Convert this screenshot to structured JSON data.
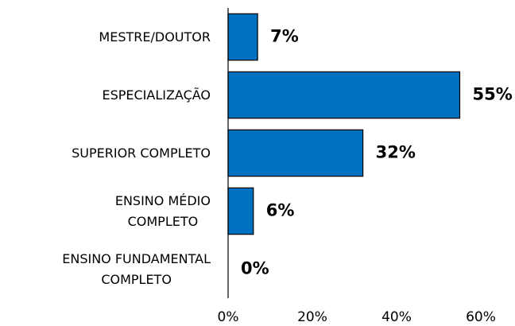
{
  "chart_data": {
    "type": "bar",
    "orientation": "horizontal",
    "categories": [
      "MESTRE/DOUTOR",
      "ESPECIALIZAÇÃO",
      "SUPERIOR COMPLETO",
      "ENSINO MÉDIO\nCOMPLETO",
      "ENSINO FUNDAMENTAL\nCOMPLETO"
    ],
    "values": [
      7,
      55,
      32,
      6,
      0
    ],
    "value_labels": [
      "7%",
      "55%",
      "32%",
      "6%",
      "0%"
    ],
    "color": "#0070c0",
    "xlim": [
      0,
      60
    ],
    "xticks": [
      {
        "value": 0,
        "label": "0%"
      },
      {
        "value": 20,
        "label": "20%"
      },
      {
        "value": 40,
        "label": "40%"
      },
      {
        "value": 60,
        "label": "60%"
      }
    ]
  }
}
